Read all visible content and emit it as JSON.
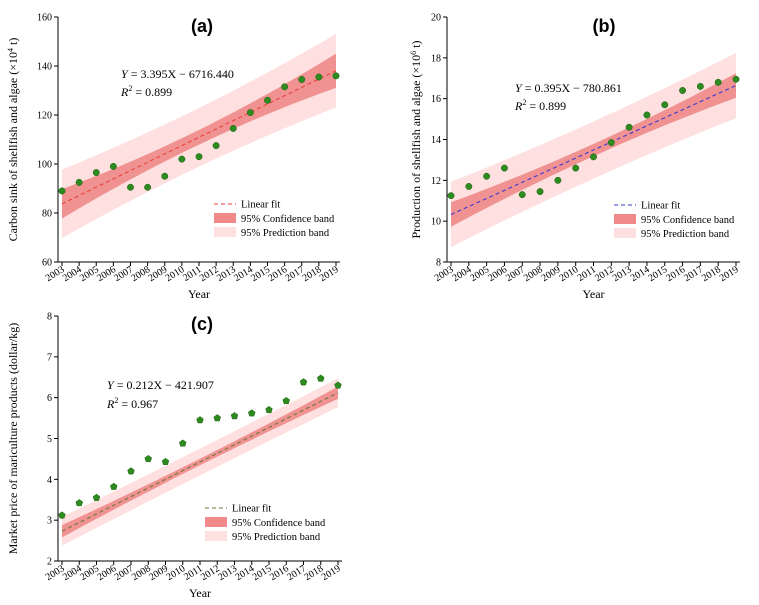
{
  "chart_data": [
    {
      "type": "scatter",
      "panel_label": "(a)",
      "xlabel": "Year",
      "ylabel": "Carbon sink of shellfish and algae (×10",
      "ylabel_sup": "4",
      "ylabel_end": " t)",
      "x": [
        2003,
        2004,
        2005,
        2006,
        2007,
        2008,
        2009,
        2010,
        2011,
        2012,
        2013,
        2014,
        2015,
        2016,
        2017,
        2018,
        2019
      ],
      "y": [
        89,
        92.5,
        96.5,
        99,
        90.5,
        90.5,
        95,
        102,
        103,
        107.5,
        114.5,
        121,
        126,
        131.5,
        134.5,
        135.5,
        136
      ],
      "ylim": [
        60,
        160
      ],
      "yticks": [
        60,
        80,
        100,
        120,
        140,
        160
      ],
      "fit": {
        "slope": 3.395,
        "intercept": -6716.44
      },
      "conf_halfwidth": {
        "start": 6,
        "mid": 3,
        "end": 7
      },
      "pred_halfwidth": {
        "start": 14,
        "mid": 12,
        "end": 15
      },
      "equation_lhs": "Y",
      "equation_rhs": " = 3.395X − 6716.440",
      "r2_label": "R",
      "r2_value": " = 0.899",
      "legend": [
        "Linear fit",
        "95% Confidence band",
        "95% Prediction band"
      ],
      "legend_position": "bottom-right",
      "fit_color": "#e8413a",
      "marker": "circle",
      "marker_color": "#2e8b1f"
    },
    {
      "type": "scatter",
      "panel_label": "(b)",
      "xlabel": "Year",
      "ylabel": "Production of shellfish and algae (×10",
      "ylabel_sup": "6",
      "ylabel_end": " t)",
      "x": [
        2003,
        2004,
        2005,
        2006,
        2007,
        2008,
        2009,
        2010,
        2011,
        2012,
        2013,
        2014,
        2015,
        2016,
        2017,
        2018,
        2019
      ],
      "y": [
        11.25,
        11.7,
        12.2,
        12.6,
        11.3,
        11.45,
        12.0,
        12.6,
        13.15,
        13.85,
        14.6,
        15.2,
        15.7,
        16.4,
        16.6,
        16.8,
        16.95
      ],
      "ylim": [
        8,
        20
      ],
      "yticks": [
        8,
        10,
        12,
        14,
        16,
        18,
        20
      ],
      "fit": {
        "slope": 0.395,
        "intercept": -780.861
      },
      "conf_halfwidth": {
        "start": 0.6,
        "mid": 0.3,
        "end": 0.6
      },
      "pred_halfwidth": {
        "start": 1.6,
        "mid": 1.4,
        "end": 1.6
      },
      "equation_lhs": "Y",
      "equation_rhs": " = 0.395X − 780.861",
      "r2_label": "R",
      "r2_value": " = 0.899",
      "legend": [
        "Linear fit",
        "95% Confidence band",
        "95% Prediction band"
      ],
      "legend_position": "bottom-right",
      "fit_color": "#3a3ad0",
      "marker": "circle",
      "marker_color": "#2e8b1f"
    },
    {
      "type": "scatter",
      "panel_label": "(c)",
      "xlabel": "Year",
      "ylabel": "Market price of mariculture products (dollar/kg)",
      "ylabel_sup": "",
      "ylabel_end": "",
      "x": [
        2003,
        2004,
        2005,
        2006,
        2007,
        2008,
        2009,
        2010,
        2011,
        2012,
        2013,
        2014,
        2015,
        2016,
        2017,
        2018,
        2019
      ],
      "y": [
        3.12,
        3.42,
        3.55,
        3.82,
        4.2,
        4.5,
        4.43,
        4.88,
        5.45,
        5.5,
        5.55,
        5.62,
        5.7,
        5.92,
        6.38,
        6.47,
        6.3
      ],
      "ylim": [
        2,
        8
      ],
      "yticks": [
        2,
        3,
        4,
        5,
        6,
        7,
        8
      ],
      "fit": {
        "slope": 0.212,
        "intercept": -421.907
      },
      "conf_halfwidth": {
        "start": 0.15,
        "mid": 0.08,
        "end": 0.15
      },
      "pred_halfwidth": {
        "start": 0.35,
        "mid": 0.33,
        "end": 0.35
      },
      "equation_lhs": "Y",
      "equation_rhs": " = 0.212X − 421.907",
      "r2_label": "R",
      "r2_value": " = 0.967",
      "legend": [
        "Linear fit",
        "95% Confidence band",
        "95% Prediction band"
      ],
      "legend_position": "bottom-right",
      "fit_color": "#6b7a3a",
      "marker": "pentagon",
      "marker_color": "#2e8b1f"
    }
  ],
  "colors": {
    "confidence": "#f08a8a",
    "prediction": "#fde0df"
  }
}
